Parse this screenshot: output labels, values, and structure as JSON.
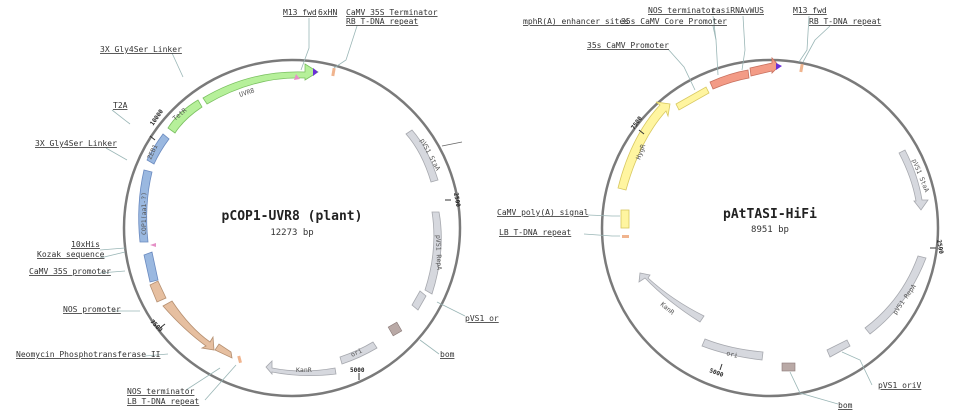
{
  "maps": [
    {
      "id": "pcop1",
      "name": "pCOP1-UVR8 (plant)",
      "length": "12273 bp",
      "ticks": [
        "10000",
        "2500",
        "5000",
        "7500"
      ],
      "features": [
        {
          "label": "UVR8"
        },
        {
          "label": "TetR"
        },
        {
          "label": "ZEB1"
        },
        {
          "label": "COP1(aa1-?)"
        },
        {
          "label": "pVS1 StaA"
        },
        {
          "label": "pVS1 RepA"
        },
        {
          "label": "ori"
        },
        {
          "label": "KanR"
        }
      ],
      "labels": [
        {
          "text": "M13 fwd"
        },
        {
          "text": "6xHN"
        },
        {
          "text": "CaMV 35S Terminator"
        },
        {
          "text": "RB T-DNA repeat"
        },
        {
          "text": "3X Gly4Ser Linker"
        },
        {
          "text": "T2A"
        },
        {
          "text": "3X Gly4Ser Linker"
        },
        {
          "text": "10xHis"
        },
        {
          "text": "Kozak sequence"
        },
        {
          "text": "CaMV 35S promoter"
        },
        {
          "text": "NOS promoter"
        },
        {
          "text": "Neomycin Phosphotransferase II"
        },
        {
          "text": "NOS terminator"
        },
        {
          "text": "LB T-DNA repeat"
        },
        {
          "text": "pVS1 or"
        },
        {
          "text": "bom"
        }
      ]
    },
    {
      "id": "pattasi",
      "name": "pAtTASI-HiFi",
      "length": "8951 bp",
      "ticks": [
        "7500",
        "2500",
        "5000"
      ],
      "features": [
        {
          "label": "HygR"
        },
        {
          "label": "pVS1 StaA"
        },
        {
          "label": "pVS1 RepA"
        },
        {
          "label": "ori"
        },
        {
          "label": "KanR"
        }
      ],
      "labels": [
        {
          "text": "NOS terminator"
        },
        {
          "text": "tasiRNAvWUS"
        },
        {
          "text": "mphR(A) enhancer sites"
        },
        {
          "text": "35s CaMV Core Promoter"
        },
        {
          "text": "M13 fwd"
        },
        {
          "text": "RB T-DNA repeat"
        },
        {
          "text": "35s CaMV Promoter"
        },
        {
          "text": "CaMV poly(A) signal"
        },
        {
          "text": "LB T-DNA repeat"
        },
        {
          "text": "pVS1 oriV"
        },
        {
          "text": "bom"
        }
      ]
    }
  ],
  "colors": {
    "backbone": "#7a7a7a",
    "green": "#b6f09a",
    "blue": "#9ab8e0",
    "tan": "#e6bfa0",
    "gray": "#d6d8de",
    "yellow": "#fff5a0",
    "salmon": "#f39b86",
    "pink": "#e58fc6",
    "purple": "#6a2fd6",
    "orange": "#f0b48e",
    "taupe": "#b9a9a6"
  }
}
